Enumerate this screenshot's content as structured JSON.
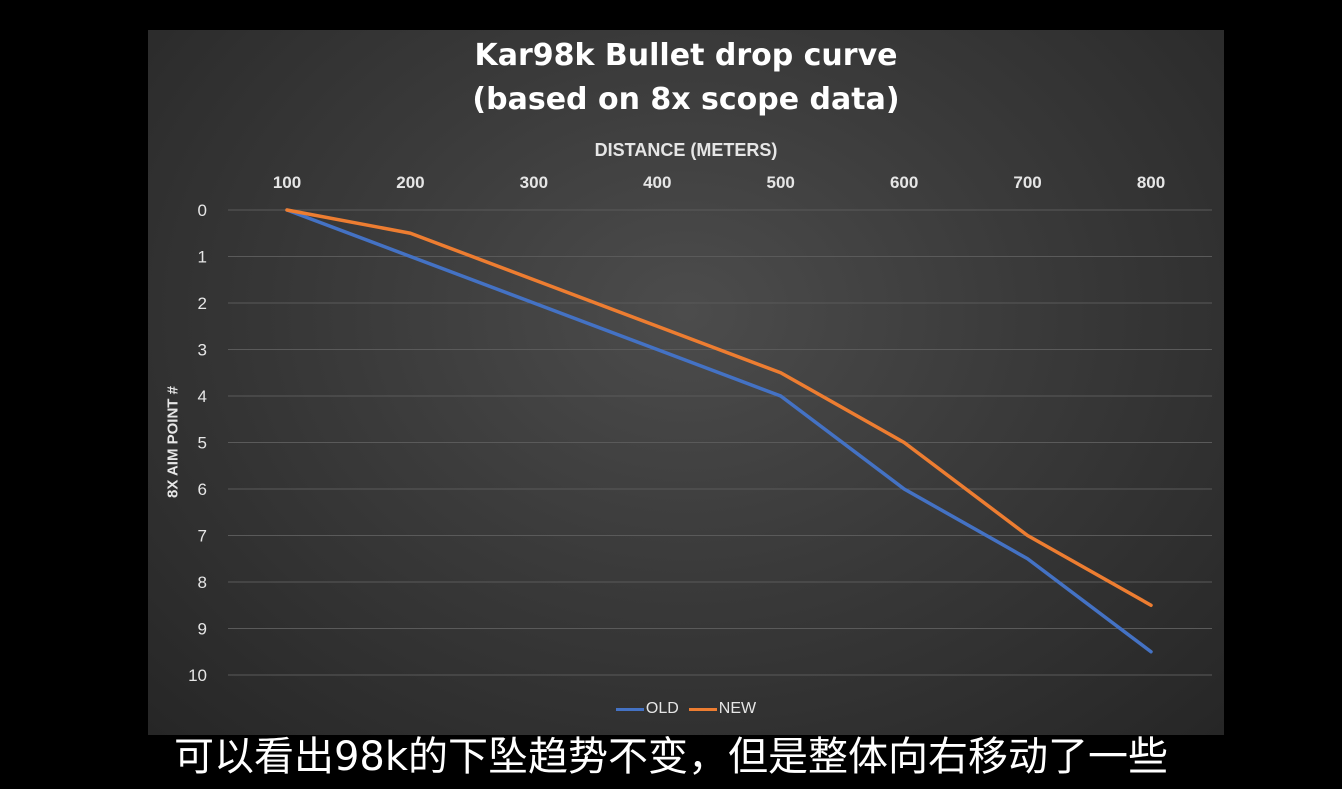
{
  "chart_data": {
    "type": "line",
    "title": "Kar98k Bullet drop curve",
    "subtitle": "(based on 8x scope data)",
    "xlabel": "DISTANCE (METERS)",
    "ylabel": "8X AIM POINT #",
    "x": [
      100,
      200,
      300,
      400,
      500,
      600,
      700,
      800
    ],
    "x_tick_labels": [
      "100",
      "200",
      "300",
      "400",
      "500",
      "600",
      "700",
      "800"
    ],
    "y_tick_labels": [
      "0",
      "1",
      "2",
      "3",
      "4",
      "5",
      "6",
      "7",
      "8",
      "9",
      "10"
    ],
    "ylim": [
      0,
      10
    ],
    "y_inverted": true,
    "x_axis_position": "top",
    "grid": true,
    "legend_position": "bottom",
    "series": [
      {
        "name": "OLD",
        "color": "#4472c4",
        "values": [
          0,
          1,
          2,
          3,
          4,
          6,
          7.5,
          9.5
        ]
      },
      {
        "name": "NEW",
        "color": "#ed7d31",
        "values": [
          0,
          0.5,
          1.5,
          2.5,
          3.5,
          5,
          7,
          8.5
        ]
      }
    ]
  },
  "caption": "可以看出98k的下坠趋势不变，但是整体向右移动了一些"
}
